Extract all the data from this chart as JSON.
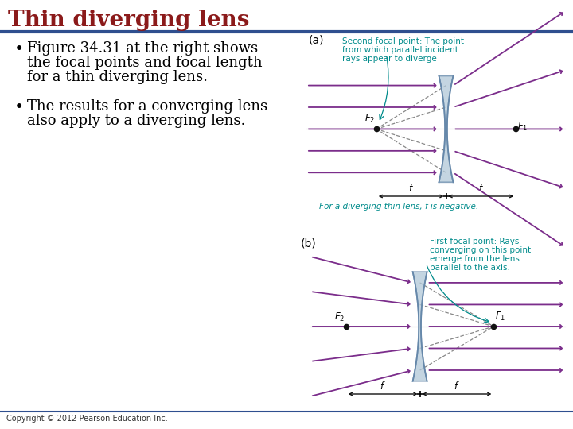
{
  "title": "Thin diverging lens",
  "title_color": "#8B1A1A",
  "title_fontsize": 20,
  "header_line_color": "#2F4F8F",
  "bg_color": "#FFFFFF",
  "bullet1_line1": "Figure 34.31 at the right shows",
  "bullet1_line2": "the focal points and focal length",
  "bullet1_line3": "for a thin diverging lens.",
  "bullet2_line1": "The results for a converging lens",
  "bullet2_line2": "also apply to a diverging lens.",
  "bullet_fontsize": 13,
  "bullet_color": "#000000",
  "copyright": "Copyright © 2012 Pearson Education Inc.",
  "label_a": "(a)",
  "label_b": "(b)",
  "annotation_a_line1": "Second focal point: The point",
  "annotation_a_line2": "from which parallel incident",
  "annotation_a_line3": "rays appear to diverge",
  "annotation_b_line1": "First focal point: Rays",
  "annotation_b_line2": "converging on this point",
  "annotation_b_line3": "emerge from the lens",
  "annotation_b_line4": "parallel to the axis.",
  "annotation_color": "#008B8B",
  "caption_a": "For a diverging thin lens, f is negative.",
  "ray_color": "#7B2D8B",
  "lens_fill_color": "#B0C8D8",
  "lens_edge_color": "#6688AA",
  "dashed_color": "#888888",
  "focal_dot_color": "#111111",
  "dim_color": "#111111",
  "axis_color": "#AAAAAA"
}
